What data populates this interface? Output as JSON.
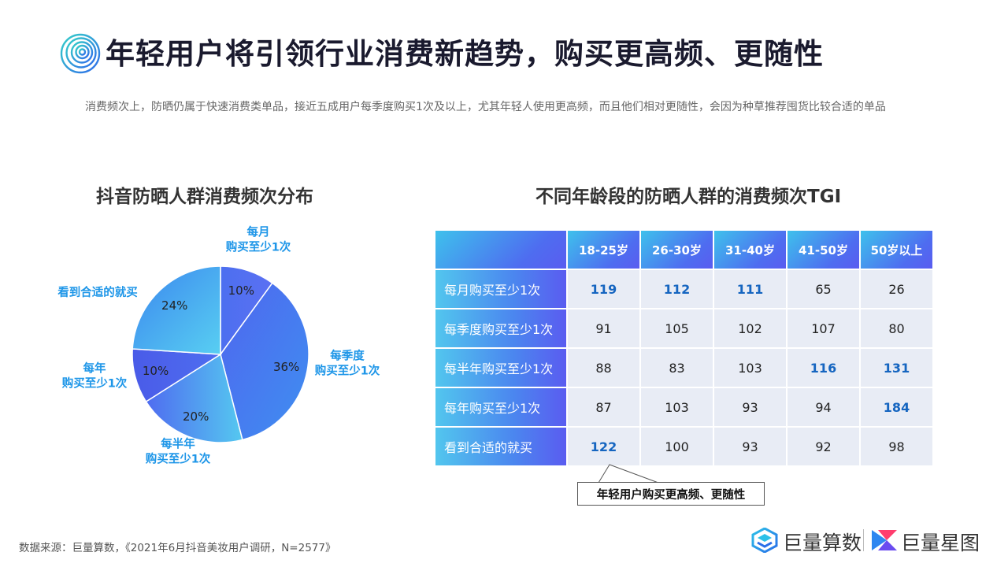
{
  "header": {
    "title": "年轻用户将引领行业消费新趋势，购买更高频、更随性",
    "subtitle": "消费频次上，防晒仍属于快速消费类单品，接近五成用户每季度购买1次及以上，尤其年轻人使用更高频，而且他们相对更随性，会因为种草推荐囤货比较合适的单品"
  },
  "footer": {
    "source": "数据来源：巨量算数，《2021年6月抖音美妆用户调研，N=2577》",
    "brand1": "巨量算数",
    "brand2": "巨量星图"
  },
  "colors": {
    "accent_blue": "#1e96e8",
    "highlight_value": "#1565c0",
    "table_cell_bg": "#e8ecf5",
    "gradient_start": "#3ec1ec",
    "gradient_end": "#5a5cf0"
  },
  "icons": {
    "header": "concentric-circles-icon",
    "brand1": "juliang-suanshu-logo-icon",
    "brand2": "juliang-xingtu-logo-icon"
  },
  "chart_data": [
    {
      "type": "pie",
      "title": "抖音防晒人群消费频次分布",
      "slices": [
        {
          "label_lines": [
            "每月",
            "购买至少1次"
          ],
          "value": 10,
          "pct_label": "10%"
        },
        {
          "label_lines": [
            "每季度",
            "购买至少1次"
          ],
          "value": 36,
          "pct_label": "36%"
        },
        {
          "label_lines": [
            "每半年",
            "购买至少1次"
          ],
          "value": 20,
          "pct_label": "20%"
        },
        {
          "label_lines": [
            "每年",
            "购买至少1次"
          ],
          "value": 10,
          "pct_label": "10%"
        },
        {
          "label_lines": [
            "看到合适的就买"
          ],
          "value": 24,
          "pct_label": "24%"
        }
      ]
    },
    {
      "type": "table",
      "title": "不同年龄段的防晒人群的消费频次TGI",
      "columns": [
        "18-25岁",
        "26-30岁",
        "31-40岁",
        "41-50岁",
        "50岁以上"
      ],
      "rows": [
        {
          "label": "每月购买至少1次",
          "values": [
            119,
            112,
            111,
            65,
            26
          ],
          "highlight": [
            true,
            true,
            true,
            false,
            false
          ]
        },
        {
          "label": "每季度购买至少1次",
          "values": [
            91,
            105,
            102,
            107,
            80
          ],
          "highlight": [
            false,
            false,
            false,
            false,
            false
          ]
        },
        {
          "label": "每半年购买至少1次",
          "values": [
            88,
            83,
            103,
            116,
            131
          ],
          "highlight": [
            false,
            false,
            false,
            true,
            true
          ]
        },
        {
          "label": "每年购买至少1次",
          "values": [
            87,
            103,
            93,
            94,
            184
          ],
          "highlight": [
            false,
            false,
            false,
            false,
            true
          ]
        },
        {
          "label": "看到合适的就买",
          "values": [
            122,
            100,
            93,
            92,
            98
          ],
          "highlight": [
            true,
            false,
            false,
            false,
            false
          ]
        }
      ],
      "annotation": "年轻用户购买更高频、更随性"
    }
  ]
}
